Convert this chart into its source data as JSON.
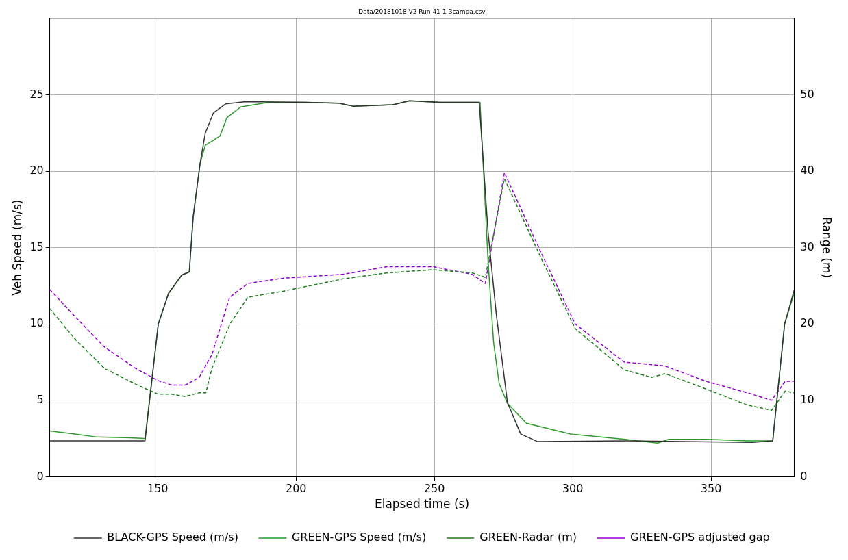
{
  "chart_data": {
    "type": "line",
    "title": "Data/20181018 V2 Run 41-1 3campa.csv",
    "xlabel": "Elapsed time (s)",
    "ylabel": "Veh Speed (m/s)",
    "y2label": "Range (m)",
    "xlim": [
      111,
      380
    ],
    "xticks": [
      150,
      200,
      250,
      300,
      350
    ],
    "ylim": [
      0,
      30
    ],
    "yticks": [
      0,
      5,
      10,
      15,
      20,
      25
    ],
    "y2lim": [
      0,
      60
    ],
    "y2ticks": [
      0,
      10,
      20,
      30,
      40,
      50
    ],
    "grid": true,
    "legend": "bottom",
    "series": [
      {
        "name": "BLACK-GPS Speed (m/s)",
        "color": "#333333",
        "line_style": "solid",
        "x": [
          111,
          125,
          145.4,
          150.2,
          153.9,
          158.7,
          161.4,
          162.8,
          165.3,
          167.2,
          170.1,
          174.5,
          181.7,
          203.5,
          215.6,
          220.5,
          235,
          241,
          252,
          266.2,
          269.4,
          272.4,
          276.4,
          281.2,
          287.3,
          320,
          365,
          372.3,
          376.6,
          380
        ],
        "values": [
          2.35,
          2.35,
          2.35,
          10,
          12,
          13.2,
          13.4,
          17,
          20.5,
          22.5,
          23.8,
          24.4,
          24.55,
          24.5,
          24.45,
          24.25,
          24.35,
          24.6,
          24.5,
          24.5,
          16,
          10.6,
          4.86,
          2.8,
          2.3,
          2.35,
          2.25,
          2.35,
          10,
          12.2
        ]
      },
      {
        "name": "GREEN-GPS Speed (m/s)",
        "color": "#2a9a2a",
        "line_style": "solid",
        "x": [
          111,
          120,
          128,
          140,
          145.4,
          150.2,
          153.9,
          158.7,
          161.4,
          162.8,
          165.3,
          167.2,
          170,
          172.5,
          175,
          180,
          190,
          203.5,
          215.6,
          220.5,
          235,
          241,
          252,
          266.5,
          269.4,
          271.4,
          273.4,
          276.4,
          283.3,
          299.2,
          318.9,
          330.7,
          334.7,
          348.6,
          363.3,
          372.3,
          376.6,
          380
        ],
        "values": [
          3,
          2.8,
          2.6,
          2.55,
          2.5,
          10,
          12,
          13.2,
          13.4,
          17,
          20.5,
          21.7,
          22,
          22.3,
          23.5,
          24.2,
          24.5,
          24.5,
          24.45,
          24.25,
          24.35,
          24.6,
          24.5,
          24.5,
          14.1,
          8.8,
          6.1,
          4.8,
          3.5,
          2.8,
          2.45,
          2.2,
          2.45,
          2.45,
          2.35,
          2.35,
          10,
          12
        ]
      },
      {
        "name": "GREEN-Radar (m)",
        "color": "#1a7f1a",
        "line_style": "dashed",
        "axis": "y2",
        "x": [
          111,
          119.9,
          130.7,
          141.5,
          150.1,
          155,
          160,
          165,
          167.4,
          169.6,
          176.1,
          182.6,
          195.5,
          217,
          233.3,
          249.5,
          263.6,
          268.4,
          275.3,
          289,
          300.9,
          318.6,
          328.5,
          333.4,
          348.1,
          363,
          371.9,
          376.8,
          380
        ],
        "values": [
          22,
          18.1,
          14.2,
          12.2,
          10.8,
          10.8,
          10.5,
          11,
          11,
          14.2,
          20,
          23.5,
          24.3,
          25.9,
          26.7,
          27.1,
          26.7,
          26.1,
          39,
          28.3,
          19.4,
          14,
          13,
          13.5,
          11.5,
          9.4,
          8.7,
          11.2,
          11
        ]
      },
      {
        "name": "GREEN-GPS adjusted gap",
        "color": "#9400d3",
        "line_style": "dashed",
        "axis": "y2",
        "x": [
          111,
          120,
          130.7,
          141.5,
          150,
          155,
          160,
          165,
          169.6,
          176,
          182.6,
          195.5,
          217,
          233,
          249.5,
          263.6,
          268.4,
          275.3,
          289,
          300.9,
          318.6,
          333.4,
          348.1,
          363,
          371.9,
          376.8,
          380
        ],
        "values": [
          24.5,
          21,
          17,
          14.3,
          12.6,
          12,
          12,
          13,
          16,
          23.5,
          25.3,
          26,
          26.5,
          27.5,
          27.5,
          26.5,
          25.3,
          39.8,
          29,
          20,
          15,
          14.5,
          12.5,
          11,
          10,
          12.5,
          12.5
        ]
      }
    ]
  }
}
